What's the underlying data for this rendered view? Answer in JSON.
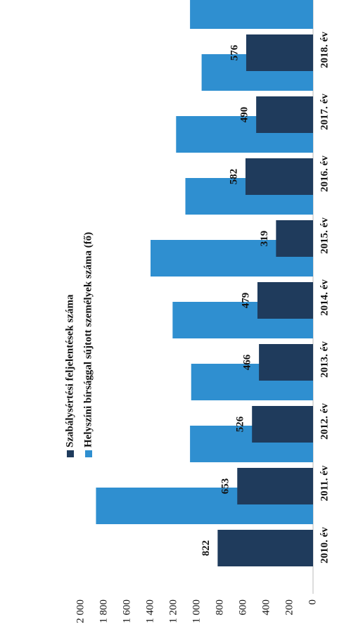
{
  "chart_data": {
    "type": "bar",
    "categories": [
      "2010. év",
      "2011. év",
      "2012. év",
      "2013. év",
      "2014. év",
      "2015. év",
      "2016. év",
      "2017. év",
      "2018. év"
    ],
    "series": [
      {
        "name": "Szabálysértési feljelentések száma",
        "color": "#1f3b5c",
        "values": [
          822,
          653,
          526,
          466,
          479,
          319,
          582,
          490,
          576
        ]
      },
      {
        "name": "Helyszíni bírsággal sújtott személyek száma (fő)",
        "color": "#2f8fd0",
        "values": [
          1870,
          1060,
          1050,
          1210,
          1400,
          1100,
          1180,
          960,
          1060
        ]
      }
    ],
    "ylim": [
      0,
      2000
    ],
    "yticks": [
      0,
      200,
      400,
      600,
      800,
      {
        "value": 1000,
        "label": "1 000"
      },
      {
        "value": 1200,
        "label": "1 200"
      },
      {
        "value": 1400,
        "label": "1 400"
      },
      {
        "value": 1600,
        "label": "1 600"
      },
      {
        "value": 1800,
        "label": "1 800"
      },
      {
        "value": 2000,
        "label": "2 000"
      }
    ],
    "rotated": true
  }
}
